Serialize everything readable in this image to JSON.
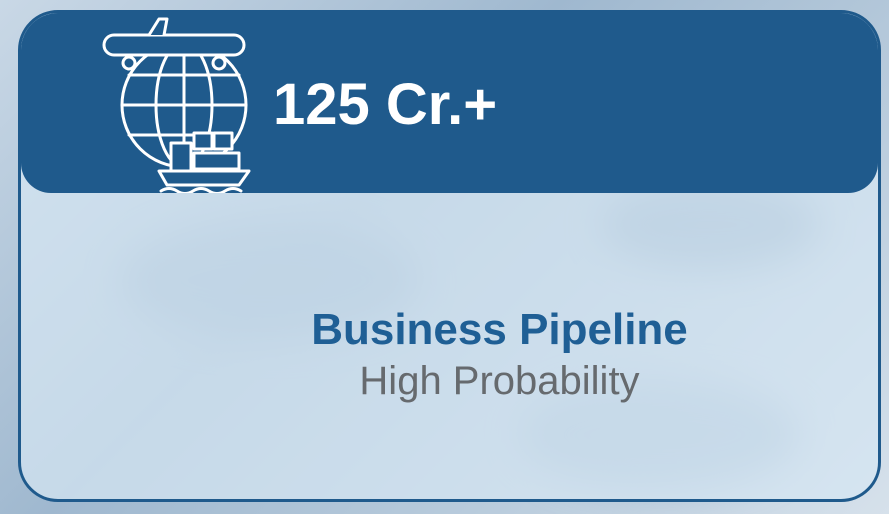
{
  "header": {
    "value": "125 Cr.+"
  },
  "body": {
    "title": "Business Pipeline",
    "subtitle": "High Probability"
  }
}
